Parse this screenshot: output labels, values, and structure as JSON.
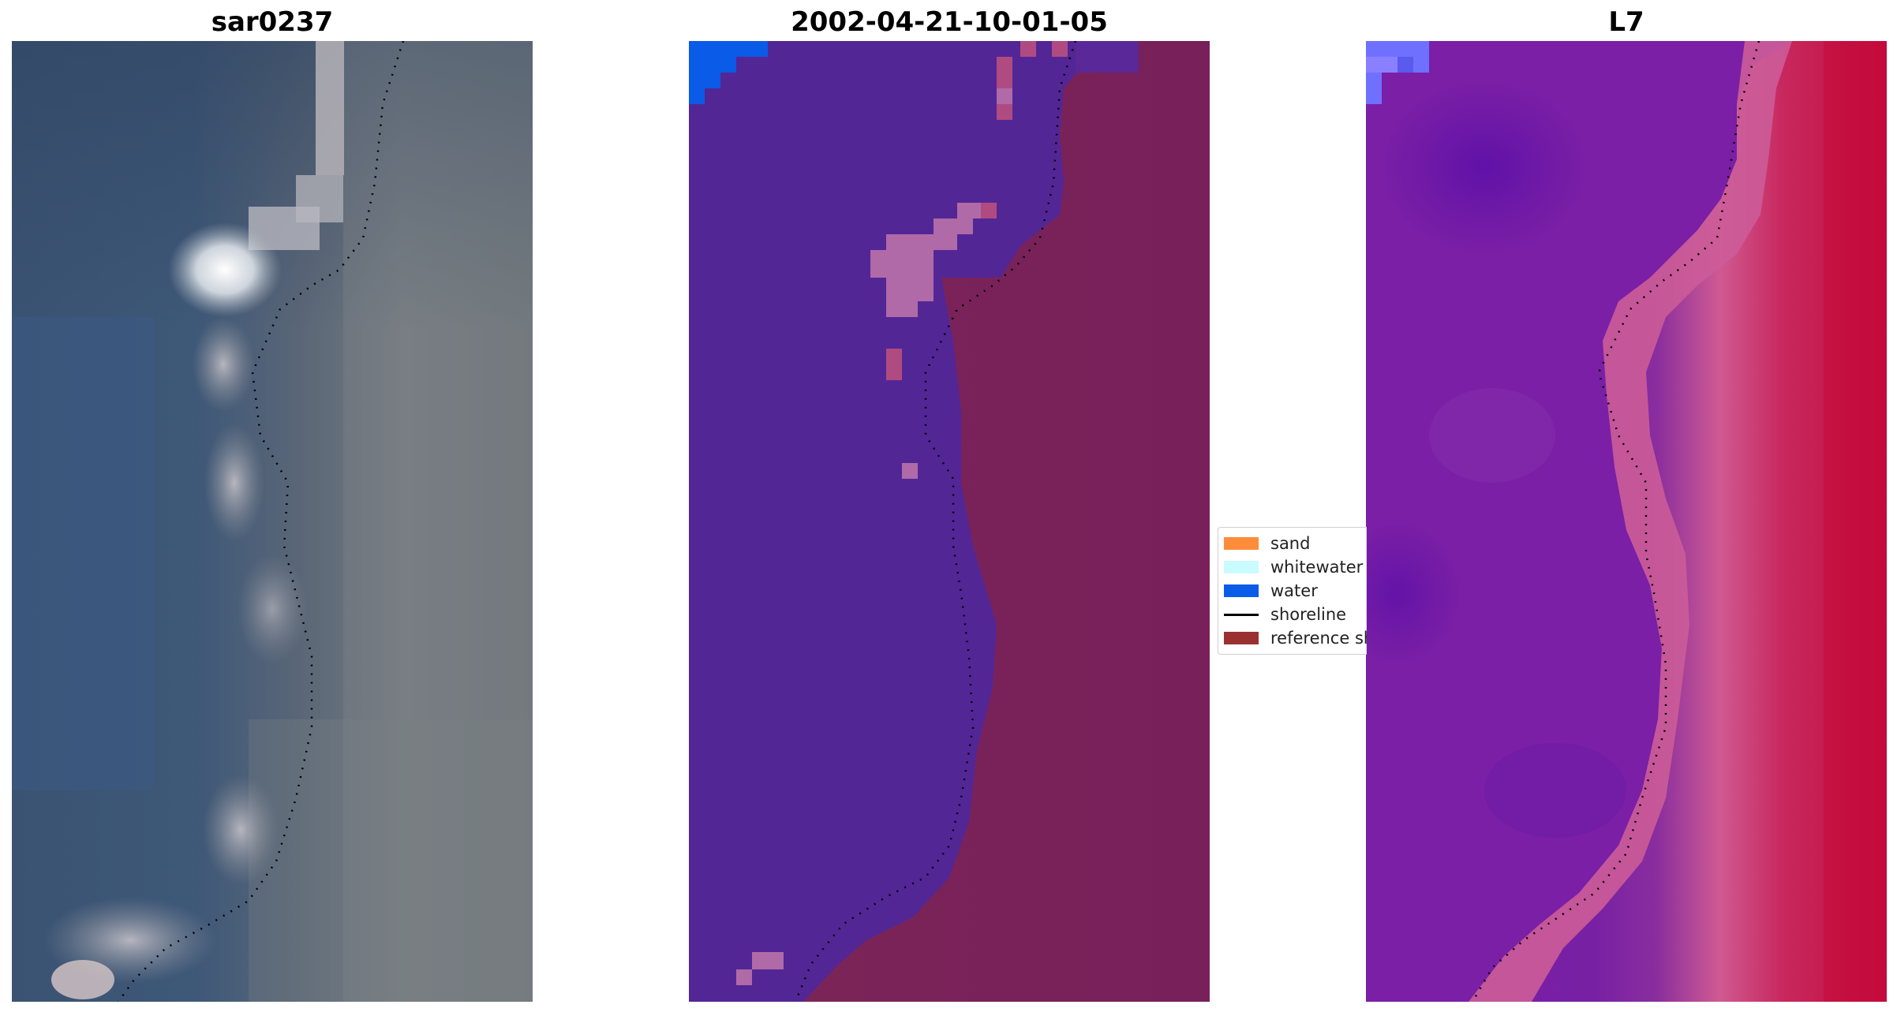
{
  "panels": [
    {
      "title": "sar0237"
    },
    {
      "title": "2002-04-21-10-01-05"
    },
    {
      "title": "L7"
    }
  ],
  "legend": {
    "items": [
      {
        "label": "sand",
        "color": "#ff8c3a",
        "kind": "patch"
      },
      {
        "label": "whitewater",
        "color": "#c9fbff",
        "kind": "patch"
      },
      {
        "label": "water",
        "color": "#0a5be8",
        "kind": "patch"
      },
      {
        "label": "shoreline",
        "color": "#000000",
        "kind": "line"
      },
      {
        "label": "reference shoreline",
        "color": "#9b3030",
        "kind": "patch"
      }
    ]
  },
  "colors": {
    "classified_water": "#532696",
    "classified_land": "#7a2358",
    "classified_water_corner": "#0a5be8",
    "classified_patch": "#b06aa8",
    "rgb_water": "#3d5577",
    "rgb_land": "#7a7e80",
    "rgb_bright": "#ffffff",
    "mndwi_water": "#7b1fa6",
    "mndwi_land": "#c40d3f",
    "mndwi_edge": "#c95a94",
    "shoreline": "#000000"
  }
}
